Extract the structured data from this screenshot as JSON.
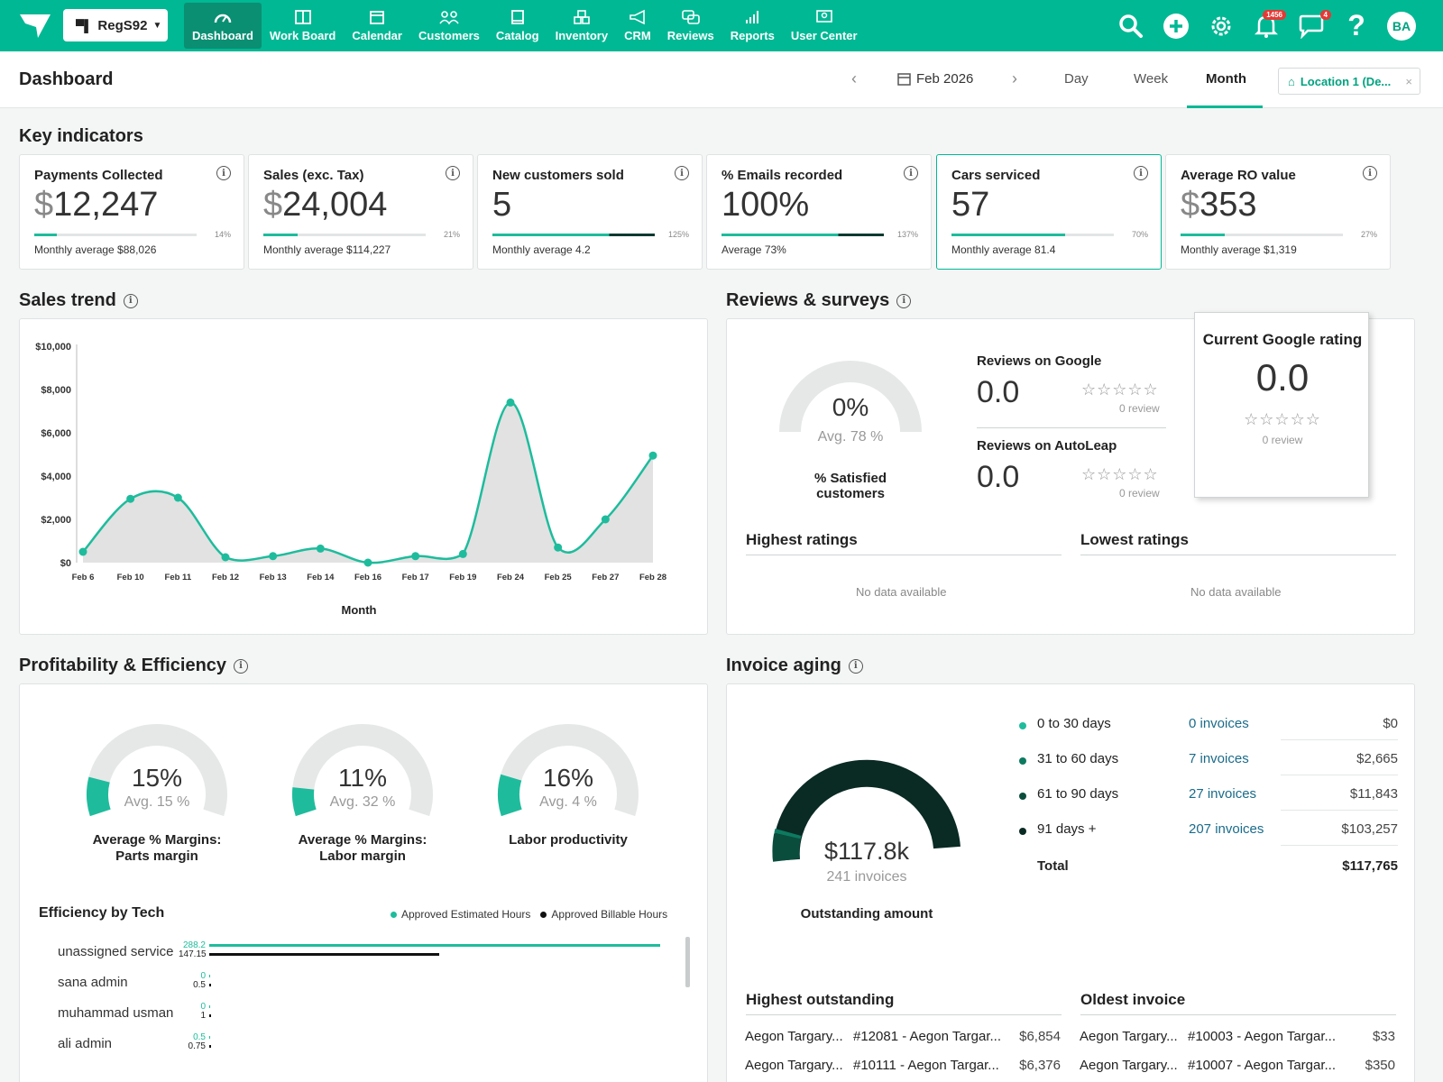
{
  "nav": {
    "store": "RegS92",
    "items": [
      {
        "label": "Dashboard",
        "icon": "gauge-icon"
      },
      {
        "label": "Work Board",
        "icon": "board-icon"
      },
      {
        "label": "Calendar",
        "icon": "calendar-icon"
      },
      {
        "label": "Customers",
        "icon": "customers-icon"
      },
      {
        "label": "Catalog",
        "icon": "catalog-icon"
      },
      {
        "label": "Inventory",
        "icon": "inventory-icon"
      },
      {
        "label": "CRM",
        "icon": "megaphone-icon"
      },
      {
        "label": "Reviews",
        "icon": "reviews-icon"
      },
      {
        "label": "Reports",
        "icon": "reports-icon"
      },
      {
        "label": "User Center",
        "icon": "user-center-icon"
      }
    ],
    "notif_badge": "1456",
    "chat_badge": "4",
    "avatar": "BA"
  },
  "header": {
    "title": "Dashboard",
    "date": "Feb 2026",
    "tabs": [
      "Day",
      "Week",
      "Month"
    ],
    "active_tab": "Month",
    "location": "Location 1 (De..."
  },
  "kpis": {
    "title": "Key indicators",
    "cards": [
      {
        "title": "Payments Collected",
        "currency": "$",
        "value": "12,247",
        "pct": "14%",
        "progress": 0.14,
        "avg": "Monthly average $88,026"
      },
      {
        "title": "Sales (exc. Tax)",
        "currency": "$",
        "value": "24,004",
        "pct": "21%",
        "progress": 0.21,
        "avg": "Monthly average $114,227"
      },
      {
        "title": "New customers sold",
        "currency": "",
        "value": "5",
        "pct": "125%",
        "progress": 1.0,
        "avg": "Monthly average 4.2"
      },
      {
        "title": "% Emails recorded",
        "currency": "",
        "value": "100%",
        "pct": "137%",
        "progress": 1.0,
        "avg": "Average 73%"
      },
      {
        "title": "Cars serviced",
        "currency": "",
        "value": "57",
        "pct": "70%",
        "progress": 0.7,
        "avg": "Monthly average 81.4"
      },
      {
        "title": "Average RO value",
        "currency": "$",
        "value": "353",
        "pct": "27%",
        "progress": 0.27,
        "avg": "Monthly average $1,319"
      }
    ]
  },
  "sales_trend": {
    "title": "Sales trend"
  },
  "chart_data": {
    "type": "area",
    "categories": [
      "Feb 6",
      "Feb 10",
      "Feb 11",
      "Feb 12",
      "Feb 13",
      "Feb 14",
      "Feb 16",
      "Feb 17",
      "Feb 19",
      "Feb 24",
      "Feb 25",
      "Feb 27",
      "Feb 28"
    ],
    "values": [
      500,
      2950,
      3000,
      250,
      300,
      650,
      0,
      300,
      400,
      7400,
      700,
      2000,
      4950
    ],
    "yticks": [
      "$0",
      "$2,000",
      "$4,000",
      "$6,000",
      "$8,000",
      "$10,000"
    ],
    "ylim": [
      0,
      10000
    ],
    "xlabel": "Month",
    "ylabel": "",
    "line_color": "#1ebc9c",
    "fill_color": "#e2e2e2"
  },
  "reviews": {
    "title": "Reviews & surveys",
    "satisfied_pct": "0%",
    "satisfied_avg": "Avg. 78 %",
    "satisfied_label": "% Satisfied customers",
    "google_title": "Reviews on Google",
    "google_score": "0.0",
    "google_count": "0 review",
    "autoleap_title": "Reviews on AutoLeap",
    "autoleap_score": "0.0",
    "autoleap_count": "0 review",
    "current_title": "Current Google rating",
    "current_score": "0.0",
    "current_count": "0 review",
    "stars": "☆☆☆☆☆",
    "highest": "Highest ratings",
    "lowest": "Lowest ratings",
    "no_data": "No data available"
  },
  "profitability": {
    "title": "Profitability & Efficiency",
    "gauges": [
      {
        "value": "15%",
        "avg": "Avg. 15 %",
        "label1": "Average % Margins:",
        "label2": "Parts margin",
        "fraction": 0.15
      },
      {
        "value": "11%",
        "avg": "Avg. 32 %",
        "label1": "Average % Margins:",
        "label2": "Labor margin",
        "fraction": 0.11
      },
      {
        "value": "16%",
        "avg": "Avg. 4 %",
        "label1": "Labor productivity",
        "label2": "",
        "fraction": 0.16
      }
    ],
    "efficiency_title": "Efficiency by Tech",
    "legend_est": "Approved Estimated Hours",
    "legend_bill": "Approved Billable Hours",
    "techs": [
      {
        "name": "unassigned service",
        "est": 288.2,
        "bill": 147.15,
        "est_label": "288.2",
        "bill_label": "147.15"
      },
      {
        "name": "sana admin",
        "est": 0,
        "bill": 0.5,
        "est_label": "0",
        "bill_label": "0.5"
      },
      {
        "name": "muhammad usman",
        "est": 0,
        "bill": 1,
        "est_label": "0",
        "bill_label": "1"
      },
      {
        "name": "ali admin",
        "est": 0.5,
        "bill": 0.75,
        "est_label": "0.5",
        "bill_label": "0.75"
      }
    ]
  },
  "invoice_aging": {
    "title": "Invoice aging",
    "amount": "$117.8k",
    "count": "241 invoices",
    "label": "Outstanding amount",
    "rows": [
      {
        "label": "0 to 30 days",
        "count": "0 invoices",
        "amount": "$0",
        "color": "#1ebc9c"
      },
      {
        "label": "31 to 60 days",
        "count": "7 invoices",
        "amount": "$2,665",
        "color": "#0d7a60"
      },
      {
        "label": "61 to 90 days",
        "count": "27 invoices",
        "amount": "$11,843",
        "color": "#0b4d3d"
      },
      {
        "label": "91 days +",
        "count": "207 invoices",
        "amount": "$103,257",
        "color": "#0a2a24"
      }
    ],
    "total_label": "Total",
    "total_amount": "$117,765",
    "highest_title": "Highest outstanding",
    "oldest_title": "Oldest invoice",
    "highest": [
      {
        "customer": "Aegon Targary...",
        "invoice": "#12081 - Aegon Targar...",
        "amount": "$6,854"
      },
      {
        "customer": "Aegon Targary...",
        "invoice": "#10111 - Aegon Targar...",
        "amount": "$6,376"
      }
    ],
    "oldest": [
      {
        "customer": "Aegon Targary...",
        "invoice": "#10003 - Aegon Targar...",
        "amount": "$33"
      },
      {
        "customer": "Aegon Targary...",
        "invoice": "#10007 - Aegon Targar...",
        "amount": "$350"
      }
    ]
  }
}
